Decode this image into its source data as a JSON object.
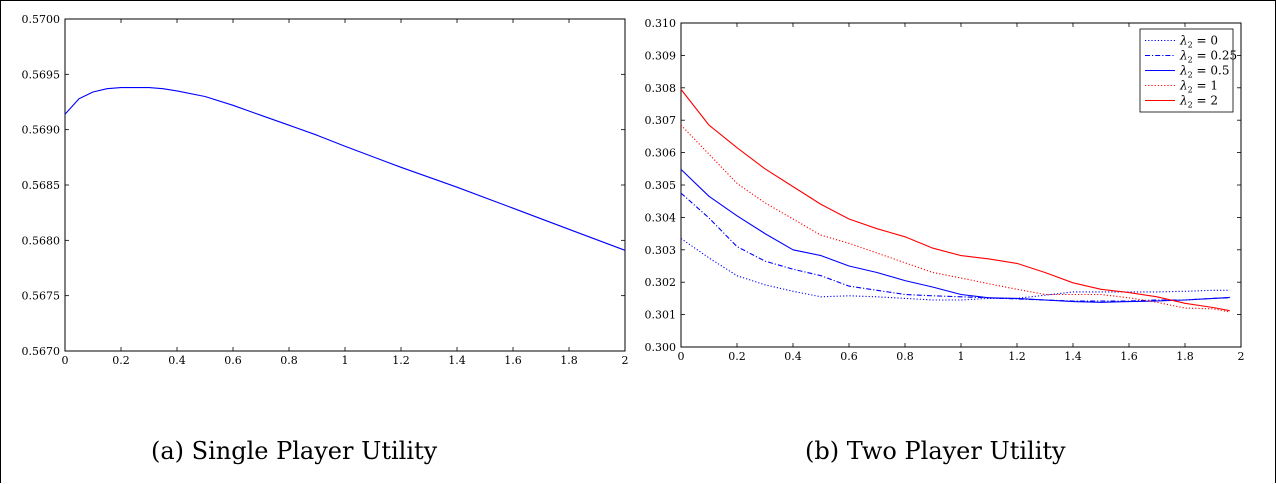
{
  "captions": {
    "a": "(a) Single Player Utility",
    "b": "(b) Two Player Utility"
  },
  "chart_data": [
    {
      "type": "line",
      "title": "",
      "xlabel": "",
      "ylabel": "",
      "xlim": [
        0,
        2
      ],
      "ylim": [
        0.567,
        0.57
      ],
      "x_ticks": [
        0,
        0.2,
        0.4,
        0.6,
        0.8,
        1,
        1.2,
        1.4,
        1.6,
        1.8,
        2
      ],
      "y_ticks": [
        0.567,
        0.5675,
        0.568,
        0.5685,
        0.569,
        0.5695,
        0.57
      ],
      "x_tick_labels": [
        "0",
        "0.2",
        "0.4",
        "0.6",
        "0.8",
        "1",
        "1.2",
        "1.4",
        "1.6",
        "1.8",
        "2"
      ],
      "y_tick_labels": [
        "0.5670",
        "0.5675",
        "0.5680",
        "0.5685",
        "0.5690",
        "0.5695",
        "0.5700"
      ],
      "grid": false,
      "series": [
        {
          "color": "#0000ff",
          "dash": "solid",
          "x": [
            0,
            0.05,
            0.1,
            0.15,
            0.2,
            0.25,
            0.3,
            0.35,
            0.4,
            0.5,
            0.6,
            0.7,
            0.8,
            0.9,
            1.0,
            1.2,
            1.4,
            1.6,
            1.8,
            2.0
          ],
          "y": [
            0.56914,
            0.56928,
            0.56934,
            0.56937,
            0.56938,
            0.56938,
            0.56938,
            0.56937,
            0.56935,
            0.5693,
            0.56922,
            0.56913,
            0.56904,
            0.56895,
            0.56885,
            0.56866,
            0.56848,
            0.56829,
            0.5681,
            0.56791
          ]
        }
      ]
    },
    {
      "type": "line",
      "title": "",
      "xlabel": "",
      "ylabel": "",
      "xlim": [
        0,
        2
      ],
      "ylim": [
        0.3,
        0.31
      ],
      "x_ticks": [
        0,
        0.2,
        0.4,
        0.6,
        0.8,
        1,
        1.2,
        1.4,
        1.6,
        1.8,
        2
      ],
      "y_ticks": [
        0.3,
        0.301,
        0.302,
        0.303,
        0.304,
        0.305,
        0.306,
        0.307,
        0.308,
        0.309,
        0.31
      ],
      "x_tick_labels": [
        "0",
        "0.2",
        "0.4",
        "0.6",
        "0.8",
        "1",
        "1.2",
        "1.4",
        "1.6",
        "1.8",
        "2"
      ],
      "y_tick_labels": [
        "0.300",
        "0.301",
        "0.302",
        "0.303",
        "0.304",
        "0.305",
        "0.306",
        "0.307",
        "0.308",
        "0.309",
        "0.310"
      ],
      "grid": false,
      "legend_position": "top-right",
      "series": [
        {
          "name": "λ2 = 0",
          "legend_symbol": "λ",
          "legend_sub": "2",
          "legend_rest": " = 0",
          "color": "#0000ff",
          "dash": "dotted",
          "x": [
            0,
            0.1,
            0.2,
            0.3,
            0.4,
            0.5,
            0.6,
            0.7,
            0.8,
            0.9,
            1.0,
            1.1,
            1.2,
            1.3,
            1.4,
            1.5,
            1.6,
            1.7,
            1.8,
            1.9,
            1.96
          ],
          "y": [
            0.30335,
            0.30275,
            0.3022,
            0.30192,
            0.30172,
            0.30155,
            0.30158,
            0.30155,
            0.3015,
            0.30145,
            0.30145,
            0.3015,
            0.3015,
            0.3016,
            0.3017,
            0.3017,
            0.3017,
            0.3017,
            0.30172,
            0.30175,
            0.30175
          ]
        },
        {
          "name": "λ2 = 0.25",
          "legend_symbol": "λ",
          "legend_sub": "2",
          "legend_rest": " = 0.25",
          "color": "#0000ff",
          "dash": "dashdot",
          "x": [
            0,
            0.1,
            0.2,
            0.3,
            0.4,
            0.5,
            0.6,
            0.7,
            0.8,
            0.9,
            1.0,
            1.1,
            1.2,
            1.3,
            1.4,
            1.5,
            1.6,
            1.7,
            1.8,
            1.9,
            1.96
          ],
          "y": [
            0.30475,
            0.30398,
            0.3031,
            0.30265,
            0.3024,
            0.3022,
            0.30188,
            0.30175,
            0.30162,
            0.30158,
            0.30155,
            0.30152,
            0.30148,
            0.30145,
            0.30142,
            0.30142,
            0.30142,
            0.30145,
            0.30145,
            0.3015,
            0.30152
          ]
        },
        {
          "name": "λ2 = 0.5",
          "legend_symbol": "λ",
          "legend_sub": "2",
          "legend_rest": " = 0.5",
          "color": "#0000ff",
          "dash": "solid",
          "x": [
            0,
            0.1,
            0.2,
            0.3,
            0.4,
            0.5,
            0.6,
            0.7,
            0.8,
            0.9,
            1.0,
            1.1,
            1.2,
            1.3,
            1.4,
            1.5,
            1.6,
            1.7,
            1.8,
            1.9,
            1.96
          ],
          "y": [
            0.30548,
            0.30465,
            0.30405,
            0.3035,
            0.303,
            0.30282,
            0.3025,
            0.3023,
            0.30205,
            0.30185,
            0.30162,
            0.30152,
            0.3015,
            0.30145,
            0.3014,
            0.30138,
            0.3014,
            0.30142,
            0.30145,
            0.3015,
            0.30153
          ]
        },
        {
          "name": "λ2 = 1",
          "legend_symbol": "λ",
          "legend_sub": "2",
          "legend_rest": " = 1",
          "color": "#ff0000",
          "dash": "dotted",
          "x": [
            0,
            0.1,
            0.2,
            0.3,
            0.4,
            0.5,
            0.6,
            0.7,
            0.8,
            0.9,
            1.0,
            1.1,
            1.2,
            1.3,
            1.4,
            1.5,
            1.6,
            1.7,
            1.8,
            1.9,
            1.96
          ],
          "y": [
            0.30685,
            0.30595,
            0.30505,
            0.30445,
            0.30395,
            0.30345,
            0.3032,
            0.3029,
            0.3026,
            0.3023,
            0.30213,
            0.30195,
            0.30178,
            0.30162,
            0.30162,
            0.30162,
            0.30152,
            0.30138,
            0.3012,
            0.30118,
            0.30108
          ]
        },
        {
          "name": "λ2 = 2",
          "legend_symbol": "λ",
          "legend_sub": "2",
          "legend_rest": " = 2",
          "color": "#ff0000",
          "dash": "solid",
          "x": [
            0,
            0.1,
            0.2,
            0.3,
            0.4,
            0.5,
            0.6,
            0.7,
            0.8,
            0.9,
            1.0,
            1.1,
            1.2,
            1.3,
            1.4,
            1.5,
            1.6,
            1.7,
            1.8,
            1.9,
            1.96
          ],
          "y": [
            0.30795,
            0.30685,
            0.30615,
            0.3055,
            0.30495,
            0.3044,
            0.30395,
            0.30365,
            0.3034,
            0.30305,
            0.30282,
            0.30272,
            0.30258,
            0.3023,
            0.30198,
            0.30178,
            0.30168,
            0.30155,
            0.30135,
            0.30122,
            0.30112
          ]
        }
      ]
    }
  ]
}
